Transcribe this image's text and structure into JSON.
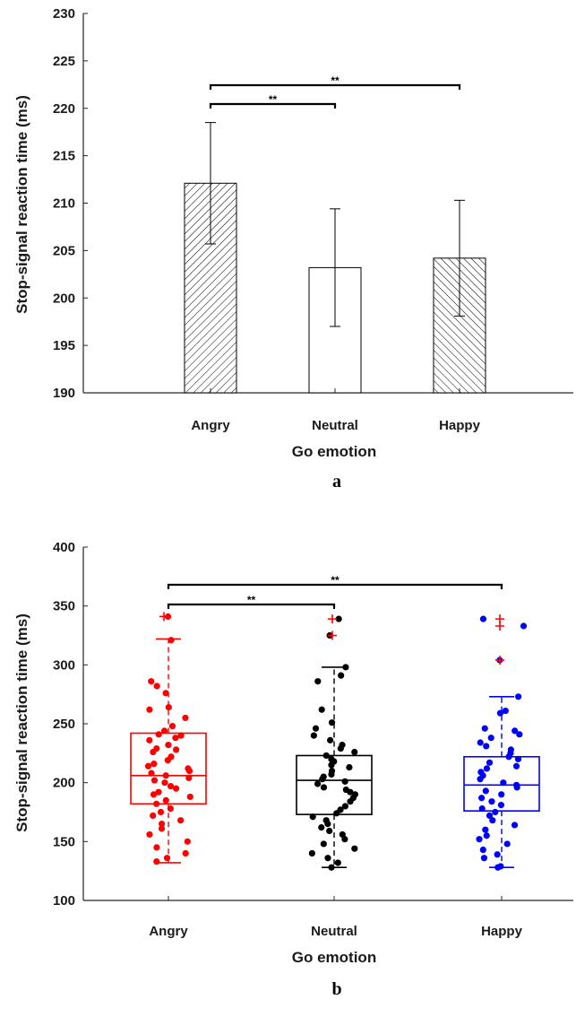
{
  "chart_data": [
    {
      "panel": "a",
      "type": "bar",
      "categories": [
        "Angry",
        "Neutral",
        "Happy"
      ],
      "values": [
        212.1,
        203.2,
        204.2
      ],
      "errors": [
        6.4,
        6.2,
        6.1
      ],
      "patterns": [
        "hatch-forward",
        "none",
        "hatch-back"
      ],
      "xlabel": "Go emotion",
      "ylabel": "Stop-signal reaction time (ms)",
      "ylim": [
        190,
        230
      ],
      "yticks": [
        190,
        195,
        200,
        205,
        210,
        215,
        220,
        225,
        230
      ],
      "significance": [
        {
          "from": "Angry",
          "to": "Neutral",
          "label": "**"
        },
        {
          "from": "Angry",
          "to": "Happy",
          "label": "**"
        }
      ]
    },
    {
      "panel": "b",
      "type": "box",
      "categories": [
        "Angry",
        "Neutral",
        "Happy"
      ],
      "xlabel": "Go emotion",
      "ylabel": "Stop-signal reaction time (ms)",
      "ylim": [
        100,
        400
      ],
      "yticks": [
        100,
        150,
        200,
        250,
        300,
        350,
        400
      ],
      "series": [
        {
          "category": "Angry",
          "color": "#ff0000",
          "min": 132,
          "q1": 182,
          "median": 206,
          "q3": 242,
          "max": 322,
          "outliers": [
            341
          ],
          "points": [
            341,
            321,
            286,
            282,
            276,
            264,
            262,
            255,
            248,
            244,
            241,
            240,
            238,
            236,
            232,
            229,
            228,
            226,
            222,
            219,
            216,
            214,
            212,
            210,
            208,
            206,
            204,
            202,
            200,
            197,
            195,
            192,
            190,
            188,
            185,
            182,
            178,
            175,
            172,
            168,
            165,
            161,
            156,
            150,
            145,
            140,
            136,
            133
          ]
        },
        {
          "category": "Neutral",
          "color": "#000000",
          "min": 128,
          "q1": 173,
          "median": 202,
          "q3": 223,
          "max": 298,
          "outliers": [
            339,
            325
          ],
          "points": [
            339,
            325,
            298,
            291,
            286,
            262,
            251,
            246,
            240,
            236,
            232,
            229,
            226,
            223,
            220,
            218,
            215,
            213,
            210,
            207,
            205,
            203,
            201,
            199,
            196,
            194,
            192,
            190,
            187,
            184,
            180,
            177,
            174,
            171,
            168,
            165,
            162,
            159,
            156,
            152,
            148,
            144,
            140,
            136,
            132,
            128
          ]
        },
        {
          "category": "Happy",
          "color": "#0000ff",
          "min": 128,
          "q1": 176,
          "median": 198,
          "q3": 222,
          "max": 273,
          "outliers": [
            339,
            333,
            304
          ],
          "points": [
            339,
            333,
            304,
            273,
            261,
            259,
            246,
            244,
            241,
            238,
            234,
            231,
            228,
            225,
            222,
            220,
            217,
            214,
            212,
            209,
            206,
            203,
            200,
            198,
            196,
            193,
            190,
            187,
            184,
            181,
            178,
            175,
            172,
            168,
            164,
            160,
            155,
            152,
            148,
            143,
            139,
            136,
            129,
            128
          ]
        }
      ],
      "significance": [
        {
          "from": "Angry",
          "to": "Neutral",
          "label": "**"
        },
        {
          "from": "Angry",
          "to": "Happy",
          "label": "**"
        }
      ]
    }
  ],
  "panel_labels": {
    "a": "a",
    "b": "b"
  }
}
